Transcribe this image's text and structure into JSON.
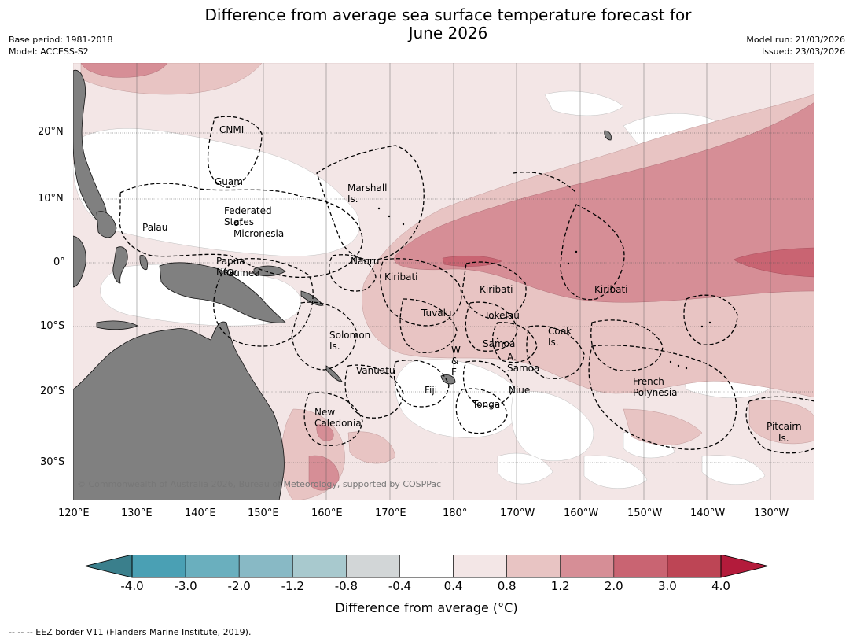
{
  "header": {
    "title_line1": "Difference from average sea surface temperature forecast for",
    "title_line2": "June 2026",
    "base_period": "Base period: 1981-2018",
    "model": "Model: ACCESS-S2",
    "model_run": "Model run: 21/03/2026",
    "issued": "Issued: 23/03/2026"
  },
  "map": {
    "lat_ticks": [
      "20°N",
      "10°N",
      "0°",
      "10°S",
      "20°S",
      "30°S"
    ],
    "lon_ticks": [
      "120°E",
      "130°E",
      "140°E",
      "150°E",
      "160°E",
      "170°E",
      "180°",
      "170°W",
      "160°W",
      "150°W",
      "140°W",
      "130°W"
    ],
    "regions": [
      {
        "name": "CNMI"
      },
      {
        "name": "Guam"
      },
      {
        "name": "Marshall Is."
      },
      {
        "name": "Federated States"
      },
      {
        "name": "of Micronesia"
      },
      {
        "name": "Palau"
      },
      {
        "name": "Nauru"
      },
      {
        "name": "Papua New"
      },
      {
        "name": "Guinea"
      },
      {
        "name": "Kiribati"
      },
      {
        "name": "Kiribati"
      },
      {
        "name": "Kiribati"
      },
      {
        "name": "Tuvalu"
      },
      {
        "name": "Tokelau"
      },
      {
        "name": "Solomon Is."
      },
      {
        "name": "Cook Is."
      },
      {
        "name": "Samoa"
      },
      {
        "name": "W & F"
      },
      {
        "name": "A. Samoa"
      },
      {
        "name": "Vanuatu"
      },
      {
        "name": "Fiji"
      },
      {
        "name": "Niue"
      },
      {
        "name": "French Polynesia"
      },
      {
        "name": "Tonga"
      },
      {
        "name": "New Caledonia"
      },
      {
        "name": "Pitcairn"
      },
      {
        "name": "Is."
      }
    ],
    "copyright": "© Commonwealth of Australia 2026, Bureau of Meteorology, supported by COSPPac"
  },
  "colorbar": {
    "ticks": [
      "-4.0",
      "-3.0",
      "-2.0",
      "-1.2",
      "-0.8",
      "-0.4",
      "0.4",
      "0.8",
      "1.2",
      "2.0",
      "3.0",
      "4.0"
    ],
    "colors": [
      "#4aa0b4",
      "#6aafbe",
      "#88b9c5",
      "#a8c9ce",
      "#d2d6d7",
      "#ffffff",
      "#f3e6e6",
      "#e8c4c3",
      "#d68e96",
      "#c96472",
      "#bd4555"
    ],
    "extend_low_color": "#3a7f8c",
    "extend_high_color": "#b31b3b",
    "label": "Difference from average (°C)"
  },
  "footer": {
    "legend": "--  --  -- EEZ border V11 (Flanders Marine Institute, 2019)."
  },
  "colors": {
    "land": "#808080",
    "level_0_8": "#f3e6e6",
    "level_1_2": "#e8c4c3",
    "level_2_0": "#d68e96",
    "level_3_0": "#c96472"
  }
}
